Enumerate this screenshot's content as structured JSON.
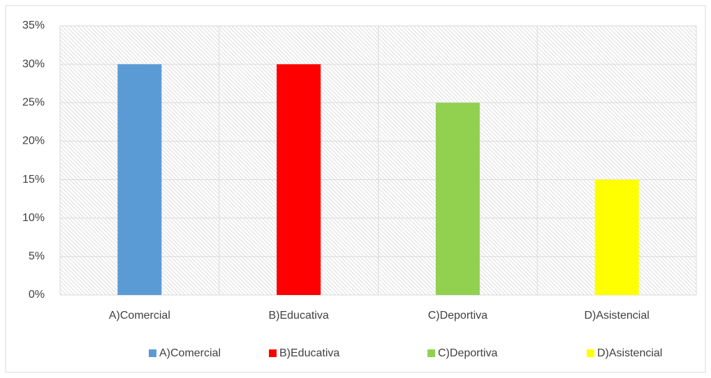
{
  "chart_data": {
    "type": "bar",
    "categories": [
      "A)Comercial",
      "B)Educativa",
      "C)Deportiva",
      "D)Asistencial"
    ],
    "values": [
      30,
      30,
      25,
      15
    ],
    "colors": [
      "#5b9bd5",
      "#ff0000",
      "#92d050",
      "#ffff00"
    ],
    "ylim": [
      0,
      35
    ],
    "yticks": [
      {
        "value": 0,
        "label": "0%"
      },
      {
        "value": 5,
        "label": "5%"
      },
      {
        "value": 10,
        "label": "10%"
      },
      {
        "value": 15,
        "label": "15%"
      },
      {
        "value": 20,
        "label": "20%"
      },
      {
        "value": 25,
        "label": "25%"
      },
      {
        "value": 30,
        "label": "30%"
      },
      {
        "value": 35,
        "label": "35%"
      }
    ],
    "grid": true,
    "legend": "bottom"
  }
}
